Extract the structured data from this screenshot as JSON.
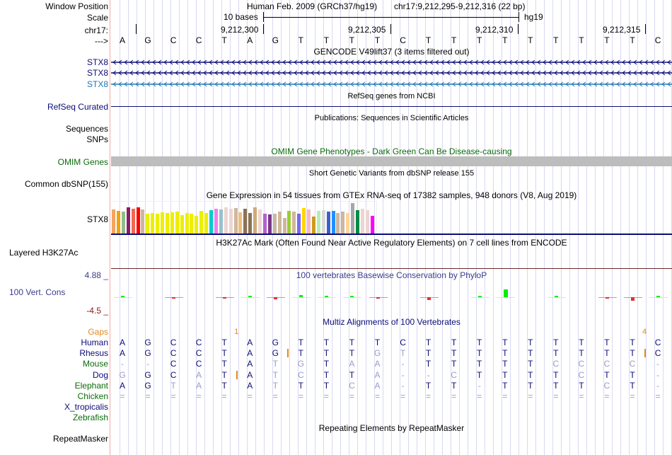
{
  "labels": {
    "window_position": "Window Position",
    "scale": "Scale",
    "chrom": "chr17:",
    "strand": "--->",
    "gencode_1": "STX8",
    "gencode_2": "STX8",
    "gencode_3": "STX8",
    "refseq": "RefSeq Curated",
    "sequences": "Sequences",
    "snps": "SNPs",
    "omim": "OMIM Genes",
    "dbsnp": "Common dbSNP(155)",
    "gtex": "STX8",
    "h3k27ac": "Layered H3K27Ac",
    "phylop_max": "4.88 _",
    "phylop": "100 Vert. Cons",
    "phylop_min": "-4.5 _",
    "gaps": "Gaps",
    "repeatmasker": "RepeatMasker"
  },
  "header": {
    "assembly": "Human Feb. 2009 (GRCh37/hg19)",
    "position": "chr17:9,212,295-9,212,316 (22 bp)",
    "scale_label": "10 bases",
    "scale_db": "hg19",
    "ticks": [
      "9,212,300",
      "9,212,305",
      "9,212,310",
      "9,212,315"
    ]
  },
  "sequence": [
    "A",
    "G",
    "C",
    "C",
    "T",
    "A",
    "G",
    "T",
    "T",
    "T",
    "T",
    "C",
    "T",
    "T",
    "T",
    "T",
    "T",
    "T",
    "T",
    "T",
    "T",
    "C"
  ],
  "titles": {
    "gencode": "GENCODE V49lift37 (3 items filtered out)",
    "refseq": "RefSeq genes from NCBI",
    "publications": "Publications: Sequences in Scientific Articles",
    "omim": "OMIM Gene Phenotypes - Dark Green Can Be Disease-causing",
    "dbsnp": "Short Genetic Variants from dbSNP release 155",
    "gtex": "Gene Expression in 54 tissues from GTEx RNA-seq of 17382 samples, 948 donors (V8, Aug 2019)",
    "h3k27ac": "H3K27Ac Mark (Often Found Near Active Regulatory Elements) on 7 cell lines from ENCODE",
    "phylop": "100 vertebrates Basewise Conservation by PhyloP",
    "multiz": "Multiz Alignments of 100 Vertebrates",
    "repeatmasker": "Repeating Elements by RepeatMasker"
  },
  "colors": {
    "gene_dark": "#0c0c78",
    "gene_light": "#1f77b4",
    "omim_green": "#0b6b0b",
    "omim_bar": "#bdbdbd",
    "track_blue": "#3c3c8c",
    "gaps_orange": "#e08a1e",
    "phylo_red": "#8b1a1a"
  },
  "gtex_bars": [
    {
      "color": "#f4a460",
      "value": 0.8
    },
    {
      "color": "#f0a30a",
      "value": 0.76
    },
    {
      "color": "#8fbc8f",
      "value": 0.72
    },
    {
      "color": "#8b1c62",
      "value": 0.86
    },
    {
      "color": "#ee6a50",
      "value": 0.82
    },
    {
      "color": "#ff0000",
      "value": 0.86
    },
    {
      "color": "#cdb79e",
      "value": 0.79
    },
    {
      "color": "#eeee00",
      "value": 0.66
    },
    {
      "color": "#eeee00",
      "value": 0.68
    },
    {
      "color": "#eeee00",
      "value": 0.66
    },
    {
      "color": "#eeee00",
      "value": 0.71
    },
    {
      "color": "#eeee00",
      "value": 0.68
    },
    {
      "color": "#eeee00",
      "value": 0.71
    },
    {
      "color": "#eeee00",
      "value": 0.73
    },
    {
      "color": "#eeee00",
      "value": 0.62
    },
    {
      "color": "#eeee00",
      "value": 0.68
    },
    {
      "color": "#eeee00",
      "value": 0.66
    },
    {
      "color": "#eeee00",
      "value": 0.6
    },
    {
      "color": "#eeee00",
      "value": 0.74
    },
    {
      "color": "#eeee00",
      "value": 0.68
    },
    {
      "color": "#00cdcd",
      "value": 0.78
    },
    {
      "color": "#ee82ee",
      "value": 0.82
    },
    {
      "color": "#9ac0cd",
      "value": 0.8
    },
    {
      "color": "#eed5d2",
      "value": 0.86
    },
    {
      "color": "#eed5d2",
      "value": 0.82
    },
    {
      "color": "#cdb79e",
      "value": 0.84
    },
    {
      "color": "#eebe7a",
      "value": 0.71
    },
    {
      "color": "#8b7355",
      "value": 0.82
    },
    {
      "color": "#8b7355",
      "value": 0.68
    },
    {
      "color": "#cdaa7d",
      "value": 0.86
    },
    {
      "color": "#eed5d2",
      "value": 0.79
    },
    {
      "color": "#b460d0",
      "value": 0.67
    },
    {
      "color": "#7a378b",
      "value": 0.63
    },
    {
      "color": "#cdb79e",
      "value": 0.66
    },
    {
      "color": "#cdb79e",
      "value": 0.72
    },
    {
      "color": "#cdb79e",
      "value": 0.52
    },
    {
      "color": "#9acd32",
      "value": 0.76
    },
    {
      "color": "#cdb79e",
      "value": 0.72
    },
    {
      "color": "#7b68ee",
      "value": 0.66
    },
    {
      "color": "#ffd700",
      "value": 0.84
    },
    {
      "color": "#ffb6c1",
      "value": 0.8
    },
    {
      "color": "#cd9b1d",
      "value": 0.57
    },
    {
      "color": "#b4eeb4",
      "value": 0.74
    },
    {
      "color": "#d9d9d9",
      "value": 0.77
    },
    {
      "color": "#3a5fcd",
      "value": 0.72
    },
    {
      "color": "#1e90ff",
      "value": 0.74
    },
    {
      "color": "#cdb79e",
      "value": 0.68
    },
    {
      "color": "#cdb79e",
      "value": 0.72
    },
    {
      "color": "#ffd39b",
      "value": 0.68
    },
    {
      "color": "#a6a6a6",
      "value": 1.0
    },
    {
      "color": "#008b45",
      "value": 0.78
    },
    {
      "color": "#eed5d2",
      "value": 0.82
    },
    {
      "color": "#eed5d2",
      "value": 0.78
    },
    {
      "color": "#ff00ff",
      "value": 0.59
    }
  ],
  "phylop": {
    "range": [
      -4.5,
      4.88
    ],
    "scores": [
      0.3,
      0,
      -0.1,
      0,
      -0.3,
      0.3,
      -0.5,
      0.6,
      0.3,
      0.1,
      -0.4,
      0,
      -0.8,
      0,
      0.3,
      2.2,
      0,
      0.2,
      0,
      -0.2,
      -1.0,
      0.3
    ]
  },
  "multiz": {
    "gaps": [
      {
        "after_base": 4,
        "label": "1"
      },
      {
        "after_base": 20,
        "label": "4"
      }
    ],
    "species": [
      {
        "name": "Human",
        "color": "#0c0c78",
        "bases": [
          "A",
          "G",
          "C",
          "C",
          "T",
          "A",
          "G",
          "T",
          "T",
          "T",
          "T",
          "C",
          "T",
          "T",
          "T",
          "T",
          "T",
          "T",
          "T",
          "T",
          "T",
          "C"
        ],
        "match": [
          1,
          1,
          1,
          1,
          1,
          1,
          1,
          1,
          1,
          1,
          1,
          1,
          1,
          1,
          1,
          1,
          1,
          1,
          1,
          1,
          1,
          1
        ]
      },
      {
        "name": "Rhesus",
        "color": "#0c0c78",
        "bases": [
          "A",
          "G",
          "C",
          "C",
          "T",
          "A",
          "G",
          "T",
          "T",
          "T",
          "G",
          "T",
          "T",
          "T",
          "T",
          "T",
          "T",
          "T",
          "T",
          "T",
          "T",
          "C"
        ],
        "match": [
          1,
          1,
          1,
          1,
          1,
          1,
          1,
          1,
          1,
          1,
          0,
          0,
          1,
          1,
          1,
          1,
          1,
          1,
          1,
          1,
          1,
          1
        ],
        "insert_after": [
          6,
          20
        ]
      },
      {
        "name": "Mouse",
        "color": "#0b6b0b",
        "bases": [
          "-",
          "-",
          "C",
          "C",
          "T",
          "A",
          "T",
          "G",
          "T",
          "A",
          "A",
          "-",
          "T",
          "T",
          "T",
          "T",
          "T",
          "C",
          "C",
          "C",
          "C",
          "-"
        ],
        "match": [
          0,
          0,
          1,
          1,
          1,
          1,
          0,
          0,
          1,
          0,
          0,
          0,
          1,
          1,
          1,
          1,
          1,
          0,
          0,
          0,
          0,
          0
        ]
      },
      {
        "name": "Dog",
        "color": "#0c0c78",
        "bases": [
          "G",
          "G",
          "C",
          "A",
          "T",
          "A",
          "T",
          "C",
          "T",
          "T",
          "A",
          "-",
          "-",
          "C",
          "T",
          "T",
          "T",
          "T",
          "C",
          "T",
          "T",
          "-"
        ],
        "match": [
          0,
          1,
          1,
          0,
          1,
          1,
          0,
          0,
          1,
          1,
          0,
          0,
          0,
          0,
          1,
          1,
          1,
          1,
          0,
          1,
          1,
          0
        ],
        "insert_after": [
          4
        ]
      },
      {
        "name": "Elephant",
        "color": "#0b6b0b",
        "bases": [
          "A",
          "G",
          "T",
          "A",
          "T",
          "A",
          "T",
          "T",
          "T",
          "C",
          "A",
          "-",
          "T",
          "T",
          "-",
          "T",
          "T",
          "T",
          "T",
          "C",
          "T",
          "-"
        ],
        "match": [
          1,
          1,
          0,
          0,
          1,
          1,
          0,
          1,
          1,
          0,
          0,
          0,
          1,
          1,
          0,
          1,
          1,
          1,
          1,
          0,
          1,
          0
        ]
      },
      {
        "name": "Chicken",
        "color": "#0b6b0b",
        "bases": [
          "=",
          "=",
          "=",
          "=",
          "=",
          "=",
          "=",
          "=",
          "=",
          "=",
          "=",
          "=",
          "=",
          "=",
          "=",
          "=",
          "=",
          "=",
          "=",
          "=",
          "=",
          "="
        ],
        "match": [
          0,
          0,
          0,
          0,
          0,
          0,
          0,
          0,
          0,
          0,
          0,
          0,
          0,
          0,
          0,
          0,
          0,
          0,
          0,
          0,
          0,
          0
        ]
      },
      {
        "name": "X_tropicalis",
        "color": "#0c0c78",
        "bases": [],
        "match": []
      },
      {
        "name": "Zebrafish",
        "color": "#0b6b0b",
        "bases": [],
        "match": []
      }
    ]
  }
}
